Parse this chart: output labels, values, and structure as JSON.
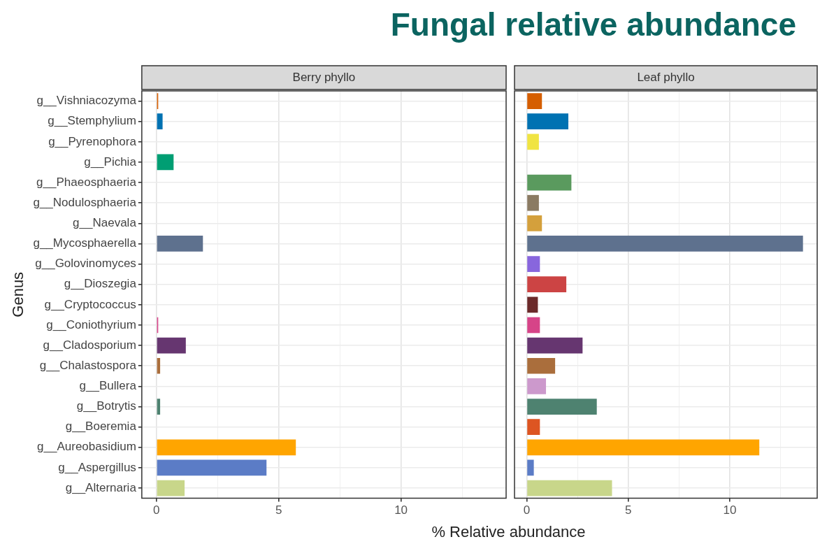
{
  "chart_data": [
    {
      "type": "bar",
      "orientation": "horizontal",
      "title": "Berry phyllo",
      "ylabel": "Genus",
      "xlabel": "% Relative abundance",
      "annotations": [
        "Fungal relative abundance"
      ],
      "categories": [
        "g__Vishniacozyma",
        "g__Stemphylium",
        "g__Pyrenophora",
        "g__Pichia",
        "g__Phaeosphaeria",
        "g__Nodulosphaeria",
        "g__Naevala",
        "g__Mycosphaerella",
        "g__Golovinomyces",
        "g__Dioszegia",
        "g__Cryptococcus",
        "g__Coniothyrium",
        "g__Cladosporium",
        "g__Chalastospora",
        "g__Bullera",
        "g__Botrytis",
        "g__Boeremia",
        "g__Aureobasidium",
        "g__Aspergillus",
        "g__Alternaria"
      ],
      "values": [
        0.07,
        0.25,
        null,
        0.7,
        null,
        null,
        null,
        1.9,
        null,
        null,
        null,
        0.07,
        1.2,
        0.15,
        null,
        0.15,
        null,
        5.7,
        4.5,
        1.15
      ],
      "colors": [
        "#d55e00",
        "#0072b2",
        "#f0e442",
        "#009e73",
        "#5a9a5e",
        "#8b7b63",
        "#d4a03c",
        "#5e718e",
        "#8866dd",
        "#cc4444",
        "#6b2a2a",
        "#d64488",
        "#663670",
        "#aa6e3c",
        "#cc99cc",
        "#4e8270",
        "#dd5522",
        "#ffa500",
        "#5b7cc6",
        "#c8d68a"
      ],
      "xlim": [
        -0.6,
        14.3
      ],
      "xticks": [
        0,
        {
          "value": 2.5,
          "label": null
        },
        5,
        {
          "value": 7.5,
          "label": null
        },
        10,
        {
          "value": 12.5,
          "label": null
        }
      ],
      "grid": true,
      "legend": false
    },
    {
      "type": "bar",
      "orientation": "horizontal",
      "title": "Leaf phyllo",
      "tick_labels": "x",
      "values": [
        0.75,
        2.05,
        0.6,
        null,
        2.2,
        0.6,
        0.75,
        13.6,
        0.65,
        1.95,
        0.55,
        0.65,
        2.75,
        1.4,
        0.95,
        3.45,
        0.65,
        11.45,
        0.35,
        4.2
      ],
      "colors": [
        "#d55e00",
        "#0072b2",
        "#f0e442",
        "#009e73",
        "#5a9a5e",
        "#8b7b63",
        "#d4a03c",
        "#5e718e",
        "#8866dd",
        "#cc4444",
        "#6b2a2a",
        "#d64488",
        "#663670",
        "#aa6e3c",
        "#cc99cc",
        "#4e8270",
        "#dd5522",
        "#ffa500",
        "#5b7cc6",
        "#c8d68a"
      ],
      "xlim": [
        -0.6,
        14.3
      ],
      "xticks": [
        0,
        {
          "value": 2.5,
          "label": null
        },
        5,
        {
          "value": 7.5,
          "label": null
        },
        10,
        {
          "value": 12.5,
          "label": null
        }
      ],
      "grid": true,
      "legend": false
    }
  ]
}
